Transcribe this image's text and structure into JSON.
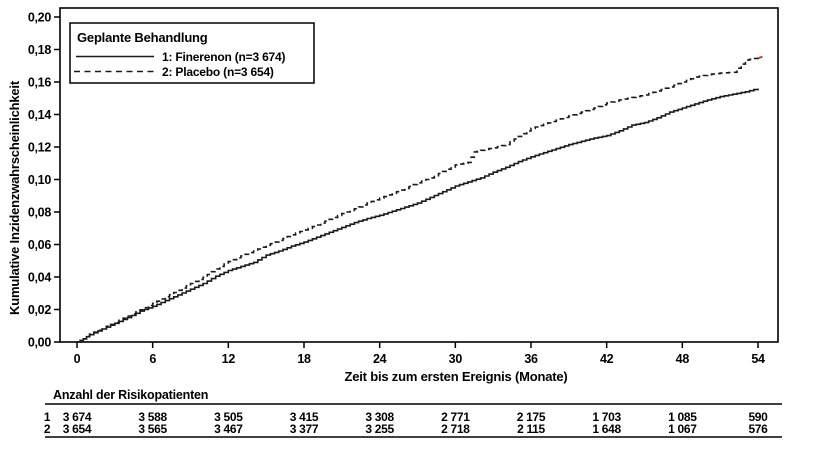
{
  "colors": {
    "foreground": "#000000",
    "background": "#ffffff",
    "censor_tick": "#c03a3a"
  },
  "chart_data": {
    "type": "line",
    "subtype": "cumulative-incidence-step-curves",
    "title": "",
    "xlabel": "Zeit bis zum ersten Ereignis (Monate)",
    "ylabel": "Kumulative Inzidenzwahrscheinlichkeit",
    "xlim": [
      0,
      54
    ],
    "ylim": [
      0.0,
      0.2
    ],
    "grid": false,
    "x_ticks": [
      "0",
      "6",
      "12",
      "18",
      "24",
      "30",
      "36",
      "42",
      "48",
      "54"
    ],
    "x_tick_values": [
      0,
      6,
      12,
      18,
      24,
      30,
      36,
      42,
      48,
      54
    ],
    "y_tick_labels": [
      "0,00",
      "0,02",
      "0,04",
      "0,06",
      "0,08",
      "0,10",
      "0,12",
      "0,14",
      "0,16",
      "0,18",
      "0,20"
    ],
    "y_tick_values": [
      0.0,
      0.02,
      0.04,
      0.06,
      0.08,
      0.1,
      0.12,
      0.14,
      0.16,
      0.18,
      0.2
    ],
    "legend": {
      "title": "Geplante Behandlung",
      "position": "top-left",
      "entries": [
        {
          "label": "1: Finerenon (n=3 674)",
          "line_style": "solid"
        },
        {
          "label": "2: Placebo (n=3 654)",
          "line_style": "dashed"
        }
      ]
    },
    "series": [
      {
        "name": "1: Finerenon (n=3 674)",
        "line_style": "solid",
        "color": "#1a1a1a",
        "points": [
          [
            0,
            0
          ],
          [
            0.5,
            0.002
          ],
          [
            1,
            0.0045
          ],
          [
            2,
            0.008
          ],
          [
            3,
            0.0115
          ],
          [
            4,
            0.015
          ],
          [
            5,
            0.019
          ],
          [
            6,
            0.022
          ],
          [
            7,
            0.0255
          ],
          [
            8,
            0.029
          ],
          [
            9,
            0.0325
          ],
          [
            10,
            0.036
          ],
          [
            11,
            0.0405
          ],
          [
            12,
            0.044
          ],
          [
            13,
            0.0465
          ],
          [
            14,
            0.049
          ],
          [
            15,
            0.0535
          ],
          [
            16,
            0.056
          ],
          [
            17,
            0.059
          ],
          [
            18,
            0.0615
          ],
          [
            19,
            0.0645
          ],
          [
            20,
            0.0675
          ],
          [
            21,
            0.0705
          ],
          [
            22,
            0.0735
          ],
          [
            23,
            0.076
          ],
          [
            24,
            0.078
          ],
          [
            25,
            0.0805
          ],
          [
            26,
            0.083
          ],
          [
            27,
            0.0855
          ],
          [
            28,
            0.089
          ],
          [
            29,
            0.0925
          ],
          [
            30,
            0.096
          ],
          [
            31,
            0.0985
          ],
          [
            32,
            0.101
          ],
          [
            33,
            0.1045
          ],
          [
            34,
            0.1075
          ],
          [
            35,
            0.111
          ],
          [
            36,
            0.114
          ],
          [
            37,
            0.1165
          ],
          [
            38,
            0.119
          ],
          [
            39,
            0.1215
          ],
          [
            40,
            0.1235
          ],
          [
            41,
            0.1255
          ],
          [
            42,
            0.127
          ],
          [
            43,
            0.13
          ],
          [
            44,
            0.1335
          ],
          [
            45,
            0.135
          ],
          [
            46,
            0.138
          ],
          [
            47,
            0.1415
          ],
          [
            48,
            0.144
          ],
          [
            49,
            0.1465
          ],
          [
            50,
            0.149
          ],
          [
            51,
            0.151
          ],
          [
            52,
            0.1525
          ],
          [
            53,
            0.154
          ],
          [
            54,
            0.156
          ]
        ]
      },
      {
        "name": "2: Placebo (n=3 654)",
        "line_style": "dashed",
        "color": "#1a1a1a",
        "end_censor_tick_color": "#c03a3a",
        "points": [
          [
            0,
            0
          ],
          [
            0.5,
            0.002
          ],
          [
            1,
            0.0048
          ],
          [
            2,
            0.0085
          ],
          [
            3,
            0.012
          ],
          [
            4,
            0.016
          ],
          [
            5,
            0.0198
          ],
          [
            6,
            0.0238
          ],
          [
            7,
            0.0278
          ],
          [
            8,
            0.0318
          ],
          [
            9,
            0.036
          ],
          [
            10,
            0.0398
          ],
          [
            11,
            0.045
          ],
          [
            12,
            0.0495
          ],
          [
            13,
            0.053
          ],
          [
            14,
            0.056
          ],
          [
            15,
            0.0595
          ],
          [
            16,
            0.0625
          ],
          [
            17,
            0.066
          ],
          [
            18,
            0.069
          ],
          [
            19,
            0.072
          ],
          [
            20,
            0.0755
          ],
          [
            21,
            0.079
          ],
          [
            22,
            0.082
          ],
          [
            23,
            0.0855
          ],
          [
            24,
            0.0885
          ],
          [
            25,
            0.0915
          ],
          [
            26,
            0.0945
          ],
          [
            27,
            0.098
          ],
          [
            28,
            0.101
          ],
          [
            29,
            0.105
          ],
          [
            30,
            0.109
          ],
          [
            31,
            0.1105
          ],
          [
            31.5,
            0.117
          ],
          [
            32,
            0.118
          ],
          [
            33,
            0.1195
          ],
          [
            34,
            0.1215
          ],
          [
            35,
            0.1265
          ],
          [
            36,
            0.1315
          ],
          [
            37,
            0.134
          ],
          [
            38,
            0.1365
          ],
          [
            39,
            0.139
          ],
          [
            40,
            0.1415
          ],
          [
            41,
            0.144
          ],
          [
            42,
            0.147
          ],
          [
            43,
            0.149
          ],
          [
            44,
            0.1505
          ],
          [
            45,
            0.152
          ],
          [
            46,
            0.1545
          ],
          [
            47,
            0.157
          ],
          [
            48,
            0.16
          ],
          [
            49,
            0.163
          ],
          [
            50,
            0.1645
          ],
          [
            51,
            0.1655
          ],
          [
            52,
            0.166
          ],
          [
            53,
            0.1735
          ],
          [
            54,
            0.175
          ]
        ]
      }
    ]
  },
  "risk_table": {
    "title": "Anzahl der Risikopatienten",
    "time_points": [
      0,
      6,
      12,
      18,
      24,
      30,
      36,
      42,
      48,
      54
    ],
    "rows": [
      {
        "label": "1",
        "values": [
          "3 674",
          "3 588",
          "3 505",
          "3 415",
          "3 308",
          "2 771",
          "2 175",
          "1 703",
          "1 085",
          "590"
        ]
      },
      {
        "label": "2",
        "values": [
          "3 654",
          "3 565",
          "3 467",
          "3 377",
          "3 255",
          "2 718",
          "2 115",
          "1 648",
          "1 067",
          "576"
        ]
      }
    ]
  }
}
